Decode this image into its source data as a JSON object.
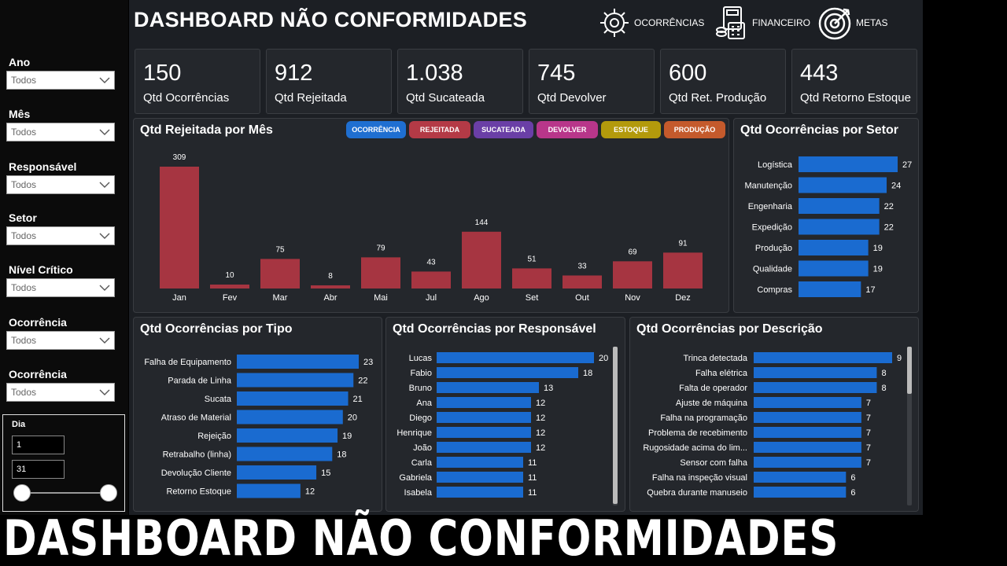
{
  "title": "DASHBOARD NÃO CONFORMIDADES",
  "banner": "DASHBOARD NÃO CONFORMIDADES",
  "nav": [
    {
      "label": "OCORRÊNCIAS",
      "icon": "gear-icon"
    },
    {
      "label": "FINANCEIRO",
      "icon": "calculator-money-icon"
    },
    {
      "label": "METAS",
      "icon": "target-icon"
    }
  ],
  "filters": [
    {
      "label": "Ano",
      "value": "Todos"
    },
    {
      "label": "Mês",
      "value": "Todos"
    },
    {
      "label": "Responsável",
      "value": "Todos"
    },
    {
      "label": "Setor",
      "value": "Todos"
    },
    {
      "label": "Nível Crítico",
      "value": "Todos"
    },
    {
      "label": "Ocorrência",
      "value": "Todos"
    },
    {
      "label": "Ocorrência",
      "value": "Todos"
    }
  ],
  "dia": {
    "label": "Dia",
    "min": "1",
    "max": "31"
  },
  "kpis": [
    {
      "value": "150",
      "label": "Qtd Ocorrências"
    },
    {
      "value": "912",
      "label": "Qtd Rejeitada"
    },
    {
      "value": "1.038",
      "label": "Qtd Sucateada"
    },
    {
      "value": "745",
      "label": "Qtd Devolver"
    },
    {
      "value": "600",
      "label": "Qtd Ret. Produção"
    },
    {
      "value": "443",
      "label": "Qtd Retorno Estoque"
    }
  ],
  "legend_buttons": [
    {
      "label": "OCORRÊNCIA",
      "color": "#1f6fd1"
    },
    {
      "label": "REJEITADA",
      "color": "#b43a46"
    },
    {
      "label": "SUCATEADA",
      "color": "#6a3fa6"
    },
    {
      "label": "DEVOLVER",
      "color": "#b8368a"
    },
    {
      "label": "ESTOQUE",
      "color": "#b39a0c"
    },
    {
      "label": "PRODUÇÃO",
      "color": "#c45a2c"
    }
  ],
  "colors": {
    "bar_red": "#a63541",
    "bar_blue": "#1a6bd0",
    "panel": "#24272c"
  },
  "chart_data": [
    {
      "type": "bar",
      "title": "Qtd Rejeitada por Mês",
      "categories": [
        "Jan",
        "Fev",
        "Mar",
        "Abr",
        "Mai",
        "Jul",
        "Ago",
        "Set",
        "Out",
        "Nov",
        "Dez"
      ],
      "values": [
        309,
        10,
        75,
        8,
        79,
        43,
        144,
        51,
        33,
        69,
        91
      ],
      "ylim": [
        0,
        309
      ]
    },
    {
      "type": "bar",
      "orientation": "horizontal",
      "title": "Qtd Ocorrências por Setor",
      "categories": [
        "Logística",
        "Manutenção",
        "Engenharia",
        "Expedição",
        "Produção",
        "Qualidade",
        "Compras"
      ],
      "values": [
        27,
        24,
        22,
        22,
        19,
        19,
        17
      ]
    },
    {
      "type": "bar",
      "orientation": "horizontal",
      "title": "Qtd Ocorrências por Tipo",
      "categories": [
        "Falha de Equipamento",
        "Parada de Linha",
        "Sucata",
        "Atraso de Material",
        "Rejeição",
        "Retrabalho (linha)",
        "Devolução Cliente",
        "Retorno Estoque"
      ],
      "values": [
        23,
        22,
        21,
        20,
        19,
        18,
        15,
        12
      ]
    },
    {
      "type": "bar",
      "orientation": "horizontal",
      "title": "Qtd Ocorrências por Responsável",
      "categories": [
        "Lucas",
        "Fabio",
        "Bruno",
        "Ana",
        "Diego",
        "Henrique",
        "João",
        "Carla",
        "Gabriela",
        "Isabela"
      ],
      "values": [
        20,
        18,
        13,
        12,
        12,
        12,
        12,
        11,
        11,
        11
      ]
    },
    {
      "type": "bar",
      "orientation": "horizontal",
      "title": "Qtd Ocorrências por Descrição",
      "categories": [
        "Trinca detectada",
        "Falha elétrica",
        "Falta de operador",
        "Ajuste de máquina",
        "Falha na programação",
        "Problema de recebimento",
        "Rugosidade acima do lim...",
        "Sensor com falha",
        "Falha na inspeção visual",
        "Quebra durante manuseio"
      ],
      "values": [
        9,
        8,
        8,
        7,
        7,
        7,
        7,
        7,
        6,
        6
      ]
    }
  ]
}
